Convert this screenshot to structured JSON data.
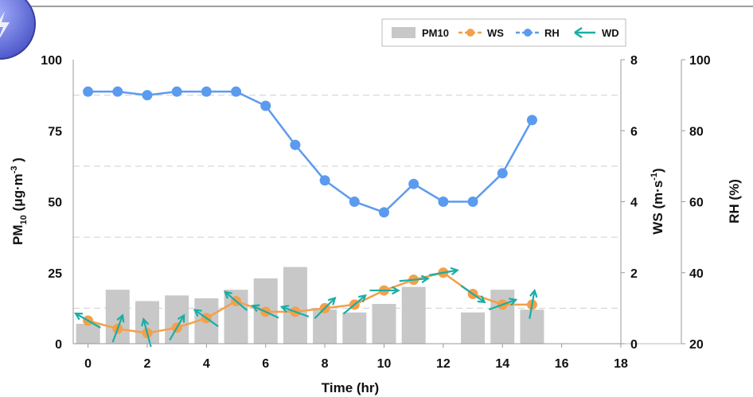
{
  "chart_data": {
    "type": "bar",
    "x": [
      0,
      1,
      2,
      3,
      4,
      5,
      6,
      7,
      8,
      9,
      10,
      11,
      12,
      13,
      14,
      15
    ],
    "xlabel": "Time (hr)",
    "xlim": [
      -0.5,
      18
    ],
    "xticks": [
      0,
      2,
      4,
      6,
      8,
      10,
      12,
      14,
      16,
      18
    ],
    "y_left": {
      "label_main": "PM",
      "label_sub": "10",
      "label_unit": " (μg·m",
      "label_sup": "-3",
      "label_end": " )",
      "range": [
        0,
        100
      ],
      "ticks": [
        0,
        25,
        50,
        75,
        100
      ]
    },
    "y_ws": {
      "label_main": "WS (m·s",
      "label_sup": "-1",
      "label_end": ")",
      "range": [
        0,
        8
      ],
      "ticks": [
        0,
        2,
        4,
        6,
        8
      ]
    },
    "y_rh": {
      "label": "RH (%)",
      "range": [
        20,
        100
      ],
      "ticks": [
        20,
        40,
        60,
        80,
        100
      ]
    },
    "grid": "horizontal dashed",
    "legend_position": "top-right",
    "series": [
      {
        "name": "PM10",
        "type": "bar",
        "axis": "left",
        "color": "#c8c8c8",
        "values": [
          7,
          19,
          15,
          17,
          16,
          19,
          23,
          27,
          12,
          11,
          14,
          20,
          null,
          11,
          19,
          12
        ]
      },
      {
        "name": "WS",
        "type": "line",
        "axis": "ws",
        "color": "#f4a04a",
        "values": [
          0.65,
          0.42,
          0.3,
          0.45,
          0.72,
          1.2,
          0.9,
          0.9,
          1.0,
          1.1,
          1.5,
          1.8,
          2.0,
          1.4,
          1.1,
          1.1
        ]
      },
      {
        "name": "RH",
        "type": "line",
        "axis": "rh",
        "color": "#5b9bef",
        "values": [
          91,
          91,
          90,
          91,
          91,
          91,
          87,
          76,
          66,
          60,
          57,
          65,
          60,
          60,
          68,
          83
        ]
      },
      {
        "name": "WD",
        "type": "arrow",
        "color": "#1aaea5",
        "angles": [
          150,
          70,
          105,
          60,
          145,
          140,
          155,
          160,
          45,
          40,
          0,
          5,
          10,
          325,
          20,
          80
        ]
      }
    ]
  }
}
